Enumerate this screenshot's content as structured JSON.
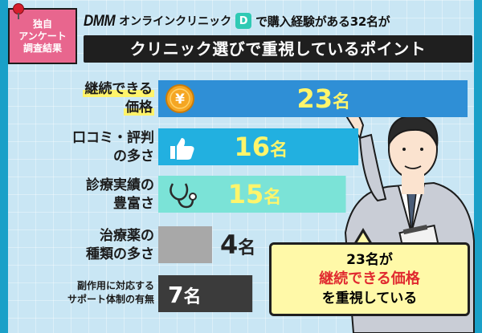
{
  "badge": {
    "lines": [
      "独自",
      "アンケート",
      "調査結果"
    ]
  },
  "header": {
    "brand": "DMM",
    "brand_name": "オンラインクリニック",
    "brand_logo": "D",
    "subtitle": "で購入経験がある32名が",
    "title": "クリニック選びで重視しているポイント"
  },
  "colors": {
    "bar_continuous": "#2f8fd6",
    "bar_reviews": "#22b0e0",
    "bar_medical": "#7be3d7",
    "bar_variety": "#a8a8a8",
    "bar_support": "#3b3b3b",
    "value_yellow": "#fff56b",
    "value_dark": "#222222"
  },
  "chart_data": {
    "type": "bar",
    "orientation": "horizontal",
    "categories": [
      "継続できる価格",
      "口コミ・評判の多さ",
      "診療実績の豊富さ",
      "治療薬の種類の多さ",
      "副作用に対応するサポート体制の有無"
    ],
    "values": [
      23,
      16,
      15,
      4,
      7
    ],
    "value_labels": [
      "23名",
      "16名",
      "15名",
      "4名",
      "7名"
    ],
    "unit": "名",
    "icons": [
      "yen-coin-icon",
      "thumbs-up-icon",
      "stethoscope-icon",
      "",
      ""
    ],
    "xlim": [
      0,
      23
    ],
    "title": "クリニック選びで重視しているポイント"
  },
  "labels": [
    {
      "line1": "継続できる",
      "line2": "価格"
    },
    {
      "line1": "口コミ・評判",
      "line2": "の多さ"
    },
    {
      "line1": "診療実績の",
      "line2": "豊富さ"
    },
    {
      "line1": "治療薬の",
      "line2": "種類の多さ"
    },
    {
      "line1": "副作用に対応する",
      "line2": "サポート体制の有無"
    }
  ],
  "bubble": {
    "line1": "23名が",
    "line2": "継続できる価格",
    "line3": "を重視している"
  }
}
